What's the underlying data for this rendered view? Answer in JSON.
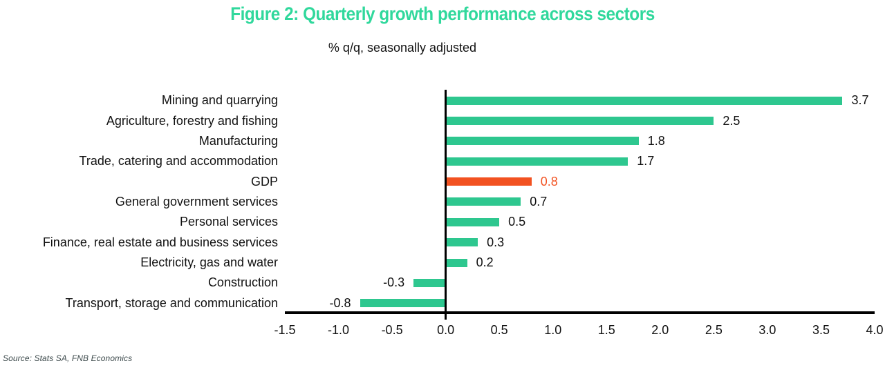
{
  "figure": {
    "title": "Figure 2: Quarterly growth performance across sectors",
    "subtitle": "% q/q, seasonally adjusted",
    "source": "Source: Stats SA, FNB Economics",
    "title_color": "#30d89c"
  },
  "chart_data": {
    "type": "bar",
    "orientation": "horizontal",
    "title": "Figure 2: Quarterly growth performance across sectors",
    "subtitle": "% q/q, seasonally adjusted",
    "categories": [
      "Mining and quarrying",
      "Agriculture, forestry and fishing",
      "Manufacturing",
      "Trade, catering and accommodation",
      "GDP",
      "General government services",
      "Personal services",
      "Finance, real estate and business services",
      "Electricity, gas and water",
      "Construction",
      "Transport, storage and communication"
    ],
    "values": [
      3.7,
      2.5,
      1.8,
      1.7,
      0.8,
      0.7,
      0.5,
      0.3,
      0.2,
      -0.3,
      -0.8
    ],
    "value_labels": [
      "3.7",
      "2.5",
      "1.8",
      "1.7",
      "0.8",
      "0.7",
      "0.5",
      "0.3",
      "0.2",
      "-0.3",
      "-0.8"
    ],
    "highlight_category": "GDP",
    "colors": {
      "bar": "#2ec78f",
      "highlight": "#f25221",
      "axis": "#000000",
      "value_label": "#111111"
    },
    "xlim": [
      -1.5,
      4.0
    ],
    "x_ticks": [
      "-1.5",
      "-1.0",
      "-0.5",
      "0.0",
      "0.5",
      "1.0",
      "1.5",
      "2.0",
      "2.5",
      "3.0",
      "3.5",
      "4.0"
    ],
    "grid": false,
    "legend": false
  }
}
